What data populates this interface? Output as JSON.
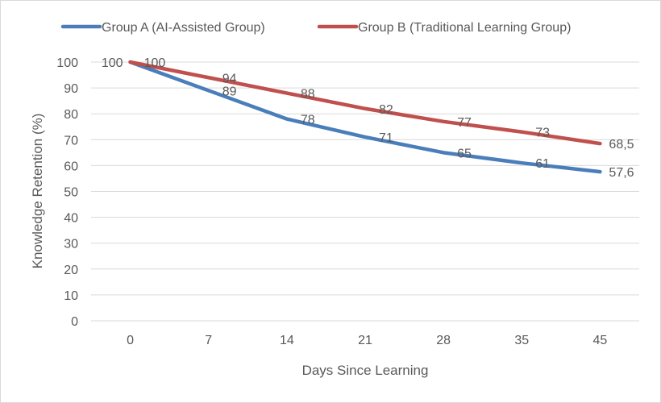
{
  "chart_data": {
    "type": "line",
    "title": "",
    "xlabel": "Days Since Learning",
    "ylabel": "Knowledge Retention (%)",
    "categories": [
      "0",
      "7",
      "14",
      "21",
      "28",
      "35",
      "45"
    ],
    "ylim": [
      0,
      100
    ],
    "yticks": [
      "0",
      "10",
      "20",
      "30",
      "40",
      "50",
      "60",
      "70",
      "80",
      "90",
      "100"
    ],
    "grid": true,
    "legend_position": "top",
    "series": [
      {
        "name": "Group A (AI-Assisted Group)",
        "color": "#4a7ebb",
        "values": [
          100,
          89,
          78,
          71,
          65,
          61,
          57.6
        ],
        "labels": [
          "100",
          "89",
          "78",
          "71",
          "65",
          "61",
          "57,6"
        ]
      },
      {
        "name": "Group B (Traditional Learning Group)",
        "color": "#c0504d",
        "values": [
          100,
          94,
          88,
          82,
          77,
          73,
          68.5
        ],
        "labels": [
          "100",
          "94",
          "88",
          "82",
          "77",
          "73",
          "68,5"
        ]
      }
    ]
  }
}
